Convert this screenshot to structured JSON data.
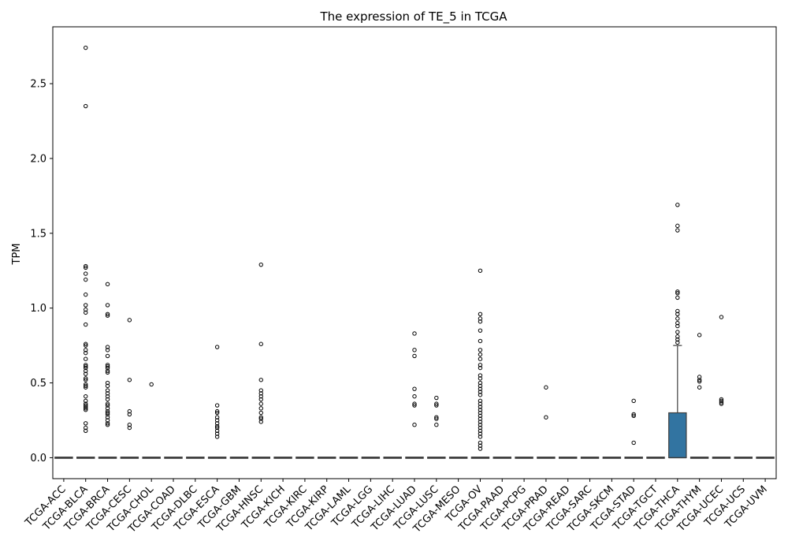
{
  "chart_data": {
    "type": "box",
    "title": "The expression of TE_5 in TCGA",
    "xlabel": "",
    "ylabel": "TPM",
    "ylim": [
      -0.14,
      2.88
    ],
    "yticks": [
      0.0,
      0.5,
      1.0,
      1.5,
      2.0,
      2.5
    ],
    "ytick_labels": [
      "0.0",
      "0.5",
      "1.0",
      "1.5",
      "2.0",
      "2.5"
    ],
    "categories": [
      "TCGA-ACC",
      "TCGA-BLCA",
      "TCGA-BRCA",
      "TCGA-CESC",
      "TCGA-CHOL",
      "TCGA-COAD",
      "TCGA-DLBC",
      "TCGA-ESCA",
      "TCGA-GBM",
      "TCGA-HNSC",
      "TCGA-KICH",
      "TCGA-KIRC",
      "TCGA-KIRP",
      "TCGA-LAML",
      "TCGA-LGG",
      "TCGA-LIHC",
      "TCGA-LUAD",
      "TCGA-LUSC",
      "TCGA-MESO",
      "TCGA-OV",
      "TCGA-PAAD",
      "TCGA-PCPG",
      "TCGA-PRAD",
      "TCGA-READ",
      "TCGA-SARC",
      "TCGA-SKCM",
      "TCGA-STAD",
      "TCGA-TGCT",
      "TCGA-THCA",
      "TCGA-THYM",
      "TCGA-UCEC",
      "TCGA-UCS",
      "TCGA-UVM"
    ],
    "box_color": "#3274a1",
    "boxes": [
      {
        "q1": 0,
        "median": 0,
        "q3": 0,
        "whisker_low": 0,
        "whisker_high": 0,
        "outliers": []
      },
      {
        "q1": 0,
        "median": 0,
        "q3": 0,
        "whisker_low": 0,
        "whisker_high": 0,
        "outliers": [
          2.74,
          2.35,
          1.28,
          1.27,
          1.23,
          1.19,
          1.09,
          1.02,
          0.99,
          0.97,
          0.89,
          0.76,
          0.75,
          0.72,
          0.7,
          0.66,
          0.62,
          0.61,
          0.6,
          0.58,
          0.56,
          0.53,
          0.52,
          0.49,
          0.48,
          0.47,
          0.41,
          0.38,
          0.36,
          0.35,
          0.34,
          0.33,
          0.32,
          0.23,
          0.2,
          0.18
        ]
      },
      {
        "q1": 0,
        "median": 0,
        "q3": 0,
        "whisker_low": 0,
        "whisker_high": 0,
        "outliers": [
          1.16,
          1.02,
          0.96,
          0.95,
          0.74,
          0.72,
          0.68,
          0.62,
          0.61,
          0.6,
          0.58,
          0.57,
          0.5,
          0.48,
          0.45,
          0.43,
          0.41,
          0.39,
          0.36,
          0.35,
          0.33,
          0.31,
          0.3,
          0.29,
          0.27,
          0.25,
          0.23,
          0.22
        ]
      },
      {
        "q1": 0,
        "median": 0,
        "q3": 0,
        "whisker_low": 0,
        "whisker_high": 0,
        "outliers": [
          0.92,
          0.52,
          0.31,
          0.29,
          0.22,
          0.2
        ]
      },
      {
        "q1": 0,
        "median": 0,
        "q3": 0,
        "whisker_low": 0,
        "whisker_high": 0,
        "outliers": [
          0.49
        ]
      },
      {
        "q1": 0,
        "median": 0,
        "q3": 0,
        "whisker_low": 0,
        "whisker_high": 0,
        "outliers": []
      },
      {
        "q1": 0,
        "median": 0,
        "q3": 0,
        "whisker_low": 0,
        "whisker_high": 0,
        "outliers": []
      },
      {
        "q1": 0,
        "median": 0,
        "q3": 0,
        "whisker_low": 0,
        "whisker_high": 0,
        "outliers": [
          0.74,
          0.35,
          0.31,
          0.3,
          0.27,
          0.25,
          0.23,
          0.21,
          0.2,
          0.18,
          0.16,
          0.14
        ]
      },
      {
        "q1": 0,
        "median": 0,
        "q3": 0,
        "whisker_low": 0,
        "whisker_high": 0,
        "outliers": []
      },
      {
        "q1": 0,
        "median": 0,
        "q3": 0,
        "whisker_low": 0,
        "whisker_high": 0,
        "outliers": [
          1.29,
          0.76,
          0.52,
          0.45,
          0.43,
          0.41,
          0.39,
          0.36,
          0.33,
          0.3,
          0.27,
          0.26,
          0.24
        ]
      },
      {
        "q1": 0,
        "median": 0,
        "q3": 0,
        "whisker_low": 0,
        "whisker_high": 0,
        "outliers": []
      },
      {
        "q1": 0,
        "median": 0,
        "q3": 0,
        "whisker_low": 0,
        "whisker_high": 0,
        "outliers": []
      },
      {
        "q1": 0,
        "median": 0,
        "q3": 0,
        "whisker_low": 0,
        "whisker_high": 0,
        "outliers": []
      },
      {
        "q1": 0,
        "median": 0,
        "q3": 0,
        "whisker_low": 0,
        "whisker_high": 0,
        "outliers": []
      },
      {
        "q1": 0,
        "median": 0,
        "q3": 0,
        "whisker_low": 0,
        "whisker_high": 0,
        "outliers": []
      },
      {
        "q1": 0,
        "median": 0,
        "q3": 0,
        "whisker_low": 0,
        "whisker_high": 0,
        "outliers": []
      },
      {
        "q1": 0,
        "median": 0,
        "q3": 0,
        "whisker_low": 0,
        "whisker_high": 0,
        "outliers": [
          0.83,
          0.72,
          0.68,
          0.46,
          0.41,
          0.36,
          0.35,
          0.22
        ]
      },
      {
        "q1": 0,
        "median": 0,
        "q3": 0,
        "whisker_low": 0,
        "whisker_high": 0,
        "outliers": [
          0.4,
          0.36,
          0.35,
          0.27,
          0.26,
          0.22
        ]
      },
      {
        "q1": 0,
        "median": 0,
        "q3": 0,
        "whisker_low": 0,
        "whisker_high": 0,
        "outliers": []
      },
      {
        "q1": 0,
        "median": 0,
        "q3": 0,
        "whisker_low": 0,
        "whisker_high": 0,
        "outliers": [
          1.25,
          0.96,
          0.93,
          0.91,
          0.85,
          0.78,
          0.72,
          0.69,
          0.66,
          0.62,
          0.6,
          0.55,
          0.53,
          0.5,
          0.48,
          0.46,
          0.44,
          0.42,
          0.38,
          0.36,
          0.34,
          0.32,
          0.3,
          0.28,
          0.26,
          0.24,
          0.22,
          0.2,
          0.18,
          0.16,
          0.14,
          0.1,
          0.08,
          0.06
        ]
      },
      {
        "q1": 0,
        "median": 0,
        "q3": 0,
        "whisker_low": 0,
        "whisker_high": 0,
        "outliers": []
      },
      {
        "q1": 0,
        "median": 0,
        "q3": 0,
        "whisker_low": 0,
        "whisker_high": 0,
        "outliers": []
      },
      {
        "q1": 0,
        "median": 0,
        "q3": 0,
        "whisker_low": 0,
        "whisker_high": 0,
        "outliers": [
          0.47,
          0.27
        ]
      },
      {
        "q1": 0,
        "median": 0,
        "q3": 0,
        "whisker_low": 0,
        "whisker_high": 0,
        "outliers": []
      },
      {
        "q1": 0,
        "median": 0,
        "q3": 0,
        "whisker_low": 0,
        "whisker_high": 0,
        "outliers": []
      },
      {
        "q1": 0,
        "median": 0,
        "q3": 0,
        "whisker_low": 0,
        "whisker_high": 0,
        "outliers": []
      },
      {
        "q1": 0,
        "median": 0,
        "q3": 0,
        "whisker_low": 0,
        "whisker_high": 0,
        "outliers": [
          0.38,
          0.29,
          0.28,
          0.1
        ]
      },
      {
        "q1": 0,
        "median": 0,
        "q3": 0,
        "whisker_low": 0,
        "whisker_high": 0,
        "outliers": []
      },
      {
        "q1": 0,
        "median": 0,
        "q3": 0.3,
        "whisker_low": 0,
        "whisker_high": 0.75,
        "outliers": [
          1.69,
          1.55,
          1.52,
          1.11,
          1.1,
          1.07,
          0.98,
          0.96,
          0.93,
          0.9,
          0.88,
          0.84,
          0.81,
          0.79,
          0.77
        ]
      },
      {
        "q1": 0,
        "median": 0,
        "q3": 0,
        "whisker_low": 0,
        "whisker_high": 0,
        "outliers": [
          0.82,
          0.54,
          0.52,
          0.51,
          0.47
        ]
      },
      {
        "q1": 0,
        "median": 0,
        "q3": 0,
        "whisker_low": 0,
        "whisker_high": 0,
        "outliers": [
          0.94,
          0.39,
          0.38,
          0.37,
          0.36
        ]
      },
      {
        "q1": 0,
        "median": 0,
        "q3": 0,
        "whisker_low": 0,
        "whisker_high": 0,
        "outliers": []
      },
      {
        "q1": 0,
        "median": 0,
        "q3": 0,
        "whisker_low": 0,
        "whisker_high": 0,
        "outliers": []
      }
    ],
    "grid": false,
    "legend": "none"
  }
}
